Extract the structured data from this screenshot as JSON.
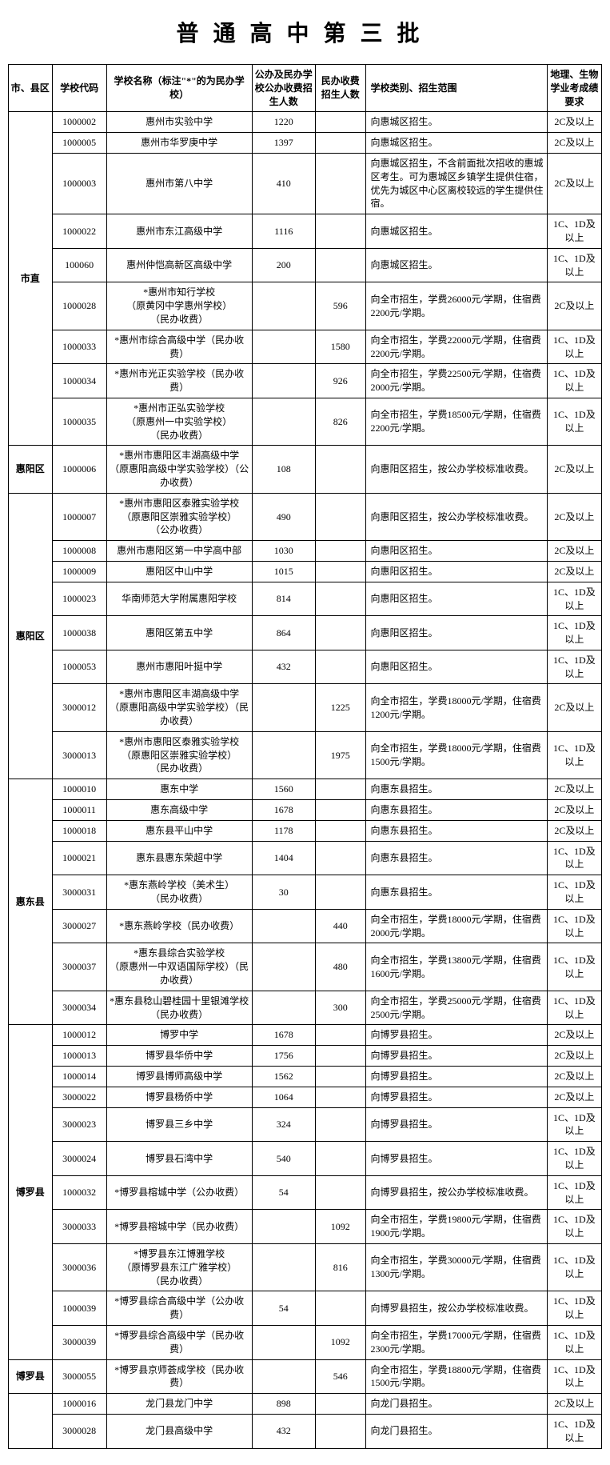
{
  "title": "普通高中第三批",
  "headers": {
    "district": "市、县区",
    "code": "学校代码",
    "name": "学校名称（标注\"*\"的为民办学校）",
    "public": "公办及民办学校公办收费招生人数",
    "private": "民办收费招生人数",
    "scope": "学校类别、招生范围",
    "req": "地理、生物学业考成绩要求"
  },
  "districts": [
    {
      "name": "市直",
      "rows": [
        {
          "code": "1000002",
          "name": "惠州市实验中学",
          "public": "1220",
          "private": "",
          "scope": "向惠城区招生。",
          "req": "2C及以上"
        },
        {
          "code": "1000005",
          "name": "惠州市华罗庚中学",
          "public": "1397",
          "private": "",
          "scope": "向惠城区招生。",
          "req": "2C及以上"
        },
        {
          "code": "1000003",
          "name": "惠州市第八中学",
          "public": "410",
          "private": "",
          "scope": "向惠城区招生，不含前面批次招收的惠城区考生。可为惠城区乡镇学生提供住宿，优先为城区中心区离校较远的学生提供住宿。",
          "req": "2C及以上"
        },
        {
          "code": "1000022",
          "name": "惠州市东江高级中学",
          "public": "1116",
          "private": "",
          "scope": "向惠城区招生。",
          "req": "1C、1D及以上"
        },
        {
          "code": "100060",
          "name": "惠州仲恺高新区高级中学",
          "public": "200",
          "private": "",
          "scope": "向惠城区招生。",
          "req": "1C、1D及以上"
        },
        {
          "code": "1000028",
          "name": "*惠州市知行学校\n（原黄冈中学惠州学校）\n（民办收费）",
          "public": "",
          "private": "596",
          "scope": "向全市招生，学费26000元/学期，住宿费2200元/学期。",
          "req": "2C及以上"
        },
        {
          "code": "1000033",
          "name": "*惠州市综合高级中学（民办收费）",
          "public": "",
          "private": "1580",
          "scope": "向全市招生，学费22000元/学期，住宿费2200元/学期。",
          "req": "1C、1D及以上"
        },
        {
          "code": "1000034",
          "name": "*惠州市光正实验学校（民办收费）",
          "public": "",
          "private": "926",
          "scope": "向全市招生，学费22500元/学期，住宿费2000元/学期。",
          "req": "1C、1D及以上"
        },
        {
          "code": "1000035",
          "name": "*惠州市正弘实验学校\n（原惠州一中实验学校）\n（民办收费）",
          "public": "",
          "private": "826",
          "scope": "向全市招生，学费18500元/学期，住宿费2200元/学期。",
          "req": "1C、1D及以上"
        }
      ]
    },
    {
      "name": "惠阳区",
      "rows": [
        {
          "code": "1000006",
          "name": "*惠州市惠阳区丰湖高级中学\n（原惠阳高级中学实验学校）（公办收费）",
          "public": "108",
          "private": "",
          "scope": "向惠阳区招生，按公办学校标准收费。",
          "req": "2C及以上"
        }
      ]
    },
    {
      "name": "惠阳区",
      "rows": [
        {
          "code": "1000007",
          "name": "*惠州市惠阳区泰雅实验学校\n（原惠阳区崇雅实验学校）\n（公办收费）",
          "public": "490",
          "private": "",
          "scope": "向惠阳区招生，按公办学校标准收费。",
          "req": "2C及以上"
        },
        {
          "code": "1000008",
          "name": "惠州市惠阳区第一中学高中部",
          "public": "1030",
          "private": "",
          "scope": "向惠阳区招生。",
          "req": "2C及以上"
        },
        {
          "code": "1000009",
          "name": "惠阳区中山中学",
          "public": "1015",
          "private": "",
          "scope": "向惠阳区招生。",
          "req": "2C及以上"
        },
        {
          "code": "1000023",
          "name": "华南师范大学附属惠阳学校",
          "public": "814",
          "private": "",
          "scope": "向惠阳区招生。",
          "req": "1C、1D及以上"
        },
        {
          "code": "1000038",
          "name": "惠阳区第五中学",
          "public": "864",
          "private": "",
          "scope": "向惠阳区招生。",
          "req": "1C、1D及以上"
        },
        {
          "code": "1000053",
          "name": "惠州市惠阳叶挺中学",
          "public": "432",
          "private": "",
          "scope": "向惠阳区招生。",
          "req": "1C、1D及以上"
        },
        {
          "code": "3000012",
          "name": "*惠州市惠阳区丰湖高级中学\n（原惠阳高级中学实验学校）（民办收费）",
          "public": "",
          "private": "1225",
          "scope": "向全市招生，学费18000元/学期，住宿费1200元/学期。",
          "req": "2C及以上"
        },
        {
          "code": "3000013",
          "name": "*惠州市惠阳区泰雅实验学校\n（原惠阳区崇雅实验学校）\n（民办收费）",
          "public": "",
          "private": "1975",
          "scope": "向全市招生，学费18000元/学期，住宿费1500元/学期。",
          "req": "1C、1D及以上"
        }
      ]
    },
    {
      "name": "惠东县",
      "rows": [
        {
          "code": "1000010",
          "name": "惠东中学",
          "public": "1560",
          "private": "",
          "scope": "向惠东县招生。",
          "req": "2C及以上"
        },
        {
          "code": "1000011",
          "name": "惠东高级中学",
          "public": "1678",
          "private": "",
          "scope": "向惠东县招生。",
          "req": "2C及以上"
        },
        {
          "code": "1000018",
          "name": "惠东县平山中学",
          "public": "1178",
          "private": "",
          "scope": "向惠东县招生。",
          "req": "2C及以上"
        },
        {
          "code": "1000021",
          "name": "惠东县惠东荣超中学",
          "public": "1404",
          "private": "",
          "scope": "向惠东县招生。",
          "req": "1C、1D及以上"
        },
        {
          "code": "3000031",
          "name": "*惠东燕岭学校（美术生）\n（民办收费）",
          "public": "30",
          "private": "",
          "scope": "向惠东县招生。",
          "req": "1C、1D及以上"
        },
        {
          "code": "3000027",
          "name": "*惠东燕岭学校（民办收费）",
          "public": "",
          "private": "440",
          "scope": "向全市招生，学费18000元/学期，住宿费2000元/学期。",
          "req": "1C、1D及以上"
        },
        {
          "code": "3000037",
          "name": "*惠东县综合实验学校\n（原惠州一中双语国际学校）（民办收费）",
          "public": "",
          "private": "480",
          "scope": "向全市招生，学费13800元/学期，住宿费1600元/学期。",
          "req": "1C、1D及以上"
        },
        {
          "code": "3000034",
          "name": "*惠东县稔山碧桂园十里银滩学校（民办收费）",
          "public": "",
          "private": "300",
          "scope": "向全市招生，学费25000元/学期，住宿费2500元/学期。",
          "req": "1C、1D及以上"
        }
      ]
    },
    {
      "name": "博罗县",
      "rows": [
        {
          "code": "1000012",
          "name": "博罗中学",
          "public": "1678",
          "private": "",
          "scope": "向博罗县招生。",
          "req": "2C及以上"
        },
        {
          "code": "1000013",
          "name": "博罗县华侨中学",
          "public": "1756",
          "private": "",
          "scope": "向博罗县招生。",
          "req": "2C及以上"
        },
        {
          "code": "1000014",
          "name": "博罗县博师高级中学",
          "public": "1562",
          "private": "",
          "scope": "向博罗县招生。",
          "req": "2C及以上"
        },
        {
          "code": "3000022",
          "name": "博罗县杨侨中学",
          "public": "1064",
          "private": "",
          "scope": "向博罗县招生。",
          "req": "2C及以上"
        },
        {
          "code": "3000023",
          "name": "博罗县三乡中学",
          "public": "324",
          "private": "",
          "scope": "向博罗县招生。",
          "req": "1C、1D及以上"
        },
        {
          "code": "3000024",
          "name": "博罗县石湾中学",
          "public": "540",
          "private": "",
          "scope": "向博罗县招生。",
          "req": "1C、1D及以上"
        },
        {
          "code": "1000032",
          "name": "*博罗县榕城中学（公办收费）",
          "public": "54",
          "private": "",
          "scope": "向博罗县招生，按公办学校标准收费。",
          "req": "1C、1D及以上"
        },
        {
          "code": "3000033",
          "name": "*博罗县榕城中学（民办收费）",
          "public": "",
          "private": "1092",
          "scope": "向全市招生，学费19800元/学期，住宿费1900元/学期。",
          "req": "1C、1D及以上"
        },
        {
          "code": "3000036",
          "name": "*博罗县东江博雅学校\n（原博罗县东江广雅学校）\n（民办收费）",
          "public": "",
          "private": "816",
          "scope": "向全市招生，学费30000元/学期，住宿费1300元/学期。",
          "req": "1C、1D及以上"
        },
        {
          "code": "1000039",
          "name": "*博罗县综合高级中学（公办收费）",
          "public": "54",
          "private": "",
          "scope": "向博罗县招生，按公办学校标准收费。",
          "req": "1C、1D及以上"
        },
        {
          "code": "3000039",
          "name": "*博罗县综合高级中学（民办收费）",
          "public": "",
          "private": "1092",
          "scope": "向全市招生，学费17000元/学期，住宿费2300元/学期。",
          "req": "1C、1D及以上"
        }
      ]
    },
    {
      "name": "博罗县",
      "rows": [
        {
          "code": "3000055",
          "name": "*博罗县京师荟成学校（民办收费）",
          "public": "",
          "private": "546",
          "scope": "向全市招生，学费18800元/学期，住宿费1500元/学期。",
          "req": "1C、1D及以上"
        }
      ]
    },
    {
      "name": "",
      "rows": [
        {
          "code": "1000016",
          "name": "龙门县龙门中学",
          "public": "898",
          "private": "",
          "scope": "向龙门县招生。",
          "req": "2C及以上"
        },
        {
          "code": "3000028",
          "name": "龙门县高级中学",
          "public": "432",
          "private": "",
          "scope": "向龙门县招生。",
          "req": "1C、1D及以上"
        }
      ]
    }
  ]
}
